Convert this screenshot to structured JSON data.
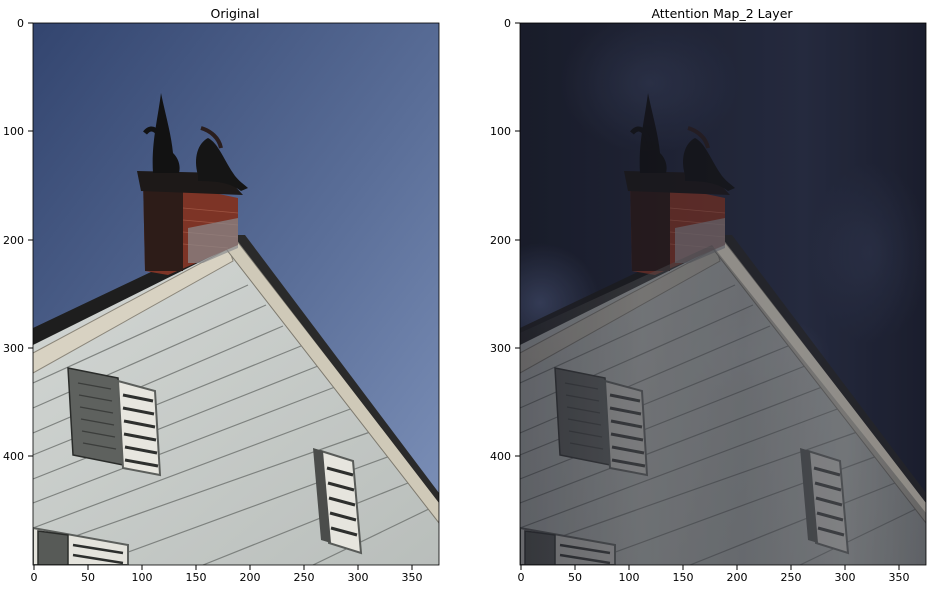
{
  "panels": [
    {
      "title": "Original",
      "x_ticks": [
        "0",
        "50",
        "100",
        "150",
        "200",
        "250",
        "300",
        "350"
      ],
      "y_ticks": [
        "0",
        "100",
        "200",
        "300",
        "400"
      ]
    },
    {
      "title": "Attention Map_2 Layer",
      "x_ticks": [
        "0",
        "50",
        "100",
        "150",
        "200",
        "250",
        "300",
        "350"
      ],
      "y_ticks": [
        "0",
        "100",
        "200",
        "300",
        "400"
      ]
    }
  ],
  "colors": {
    "sky_top": "#3b4f7e",
    "sky_bottom": "#7a8fb8",
    "siding": "#c8ccc9",
    "trim": "#d9d3c4",
    "chimney_brick": "#8a3a2a",
    "shutter": "#5f625f",
    "attention_dark": "#1a1d2b"
  }
}
